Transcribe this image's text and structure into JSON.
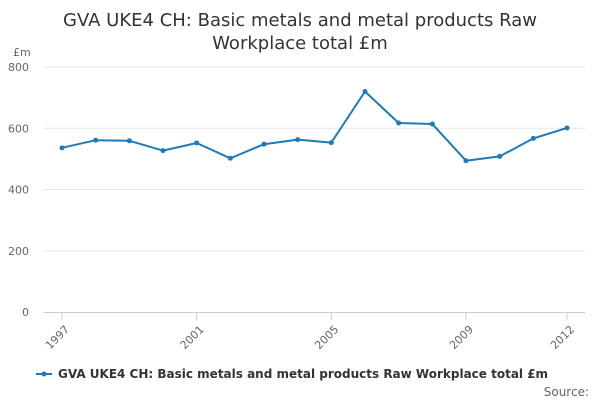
{
  "chart_data": {
    "type": "line",
    "title_lines": [
      "GVA UKE4 CH: Basic metals and metal products Raw",
      "Workplace total £m"
    ],
    "y_unit": "£m",
    "ylim": [
      0,
      800
    ],
    "y_ticks": [
      0,
      200,
      400,
      600,
      800
    ],
    "xlim": [
      1997,
      2012
    ],
    "x_ticks": [
      1997,
      2001,
      2005,
      2009,
      2012
    ],
    "grid": "horizontal",
    "legend_position": "bottom",
    "series": [
      {
        "name": "GVA UKE4 CH: Basic metals and metal products Raw Workplace total £m",
        "color": "#1f7ab5",
        "x": [
          1997,
          1998,
          1999,
          2000,
          2001,
          2002,
          2003,
          2004,
          2005,
          2006,
          2007,
          2008,
          2009,
          2010,
          2011,
          2012
        ],
        "values": [
          536,
          561,
          559,
          527,
          552,
          502,
          548,
          563,
          553,
          720,
          617,
          614,
          494,
          508,
          567,
          601
        ]
      }
    ]
  },
  "source_label": "Source:"
}
